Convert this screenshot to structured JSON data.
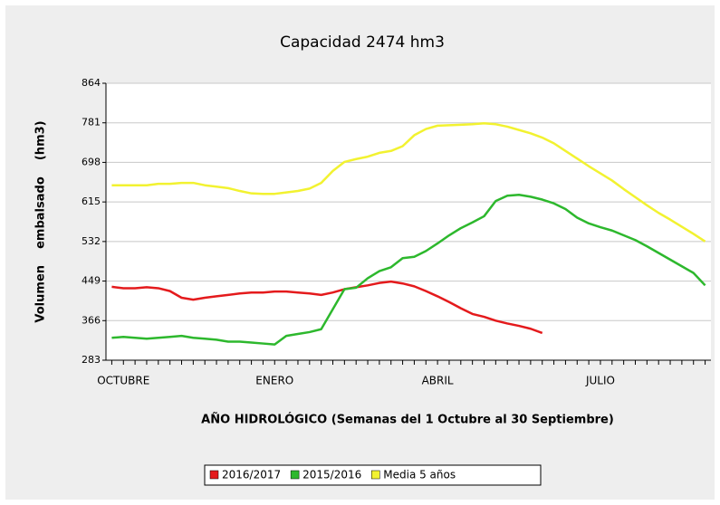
{
  "chart_data": {
    "type": "line",
    "title": "Capacidad 2474 hm3",
    "x_label": "AÑO HIDROLÓGICO  (Semanas del 1 Octubre al 30 Septiembre)",
    "y_label": "Volumen    embalsado    (hm3)",
    "categories": [
      null,
      "OCTUBRE",
      null,
      null,
      null,
      null,
      null,
      null,
      null,
      null,
      null,
      null,
      null,
      null,
      "ENERO",
      null,
      null,
      null,
      null,
      null,
      null,
      null,
      null,
      null,
      null,
      null,
      null,
      null,
      "ABRIL",
      null,
      null,
      null,
      null,
      null,
      null,
      null,
      null,
      null,
      null,
      null,
      null,
      null,
      "JULIO",
      null,
      null,
      null,
      null,
      null,
      null,
      null,
      null,
      null
    ],
    "ylim": [
      283,
      864
    ],
    "yticks": [
      283,
      366,
      449,
      532,
      615,
      698,
      781,
      864
    ],
    "grid": true,
    "legend": "bottom",
    "series": [
      {
        "name": "2016/2017",
        "color": "#e41a1c",
        "values": [
          437,
          434,
          434,
          436,
          434,
          428,
          414,
          410,
          414,
          417,
          420,
          423,
          425,
          425,
          427,
          427,
          425,
          423,
          420,
          425,
          432,
          436,
          440,
          445,
          448,
          444,
          438,
          428,
          417,
          405,
          392,
          380,
          374,
          366,
          360,
          355,
          349,
          340,
          null,
          null,
          null,
          null,
          null,
          null,
          null,
          null,
          null,
          null,
          null,
          null,
          null,
          null
        ]
      },
      {
        "name": "2015/2016",
        "color": "#2db82d",
        "values": [
          330,
          332,
          330,
          328,
          330,
          332,
          334,
          330,
          328,
          326,
          322,
          322,
          320,
          318,
          316,
          334,
          338,
          342,
          348,
          390,
          432,
          435,
          455,
          470,
          478,
          497,
          500,
          512,
          528,
          545,
          560,
          572,
          585,
          617,
          628,
          630,
          626,
          620,
          612,
          600,
          582,
          570,
          562,
          555,
          545,
          535,
          522,
          508,
          494,
          480,
          466,
          440
        ]
      },
      {
        "name": "Media 5 años",
        "color": "#f2f230",
        "values": [
          650,
          650,
          650,
          650,
          653,
          653,
          655,
          655,
          650,
          647,
          644,
          638,
          633,
          632,
          632,
          635,
          638,
          643,
          655,
          680,
          699,
          705,
          710,
          718,
          722,
          732,
          755,
          768,
          775,
          776,
          777,
          778,
          780,
          778,
          773,
          766,
          759,
          750,
          738,
          722,
          706,
          690,
          675,
          660,
          642,
          625,
          608,
          592,
          578,
          563,
          548,
          532
        ]
      }
    ]
  }
}
